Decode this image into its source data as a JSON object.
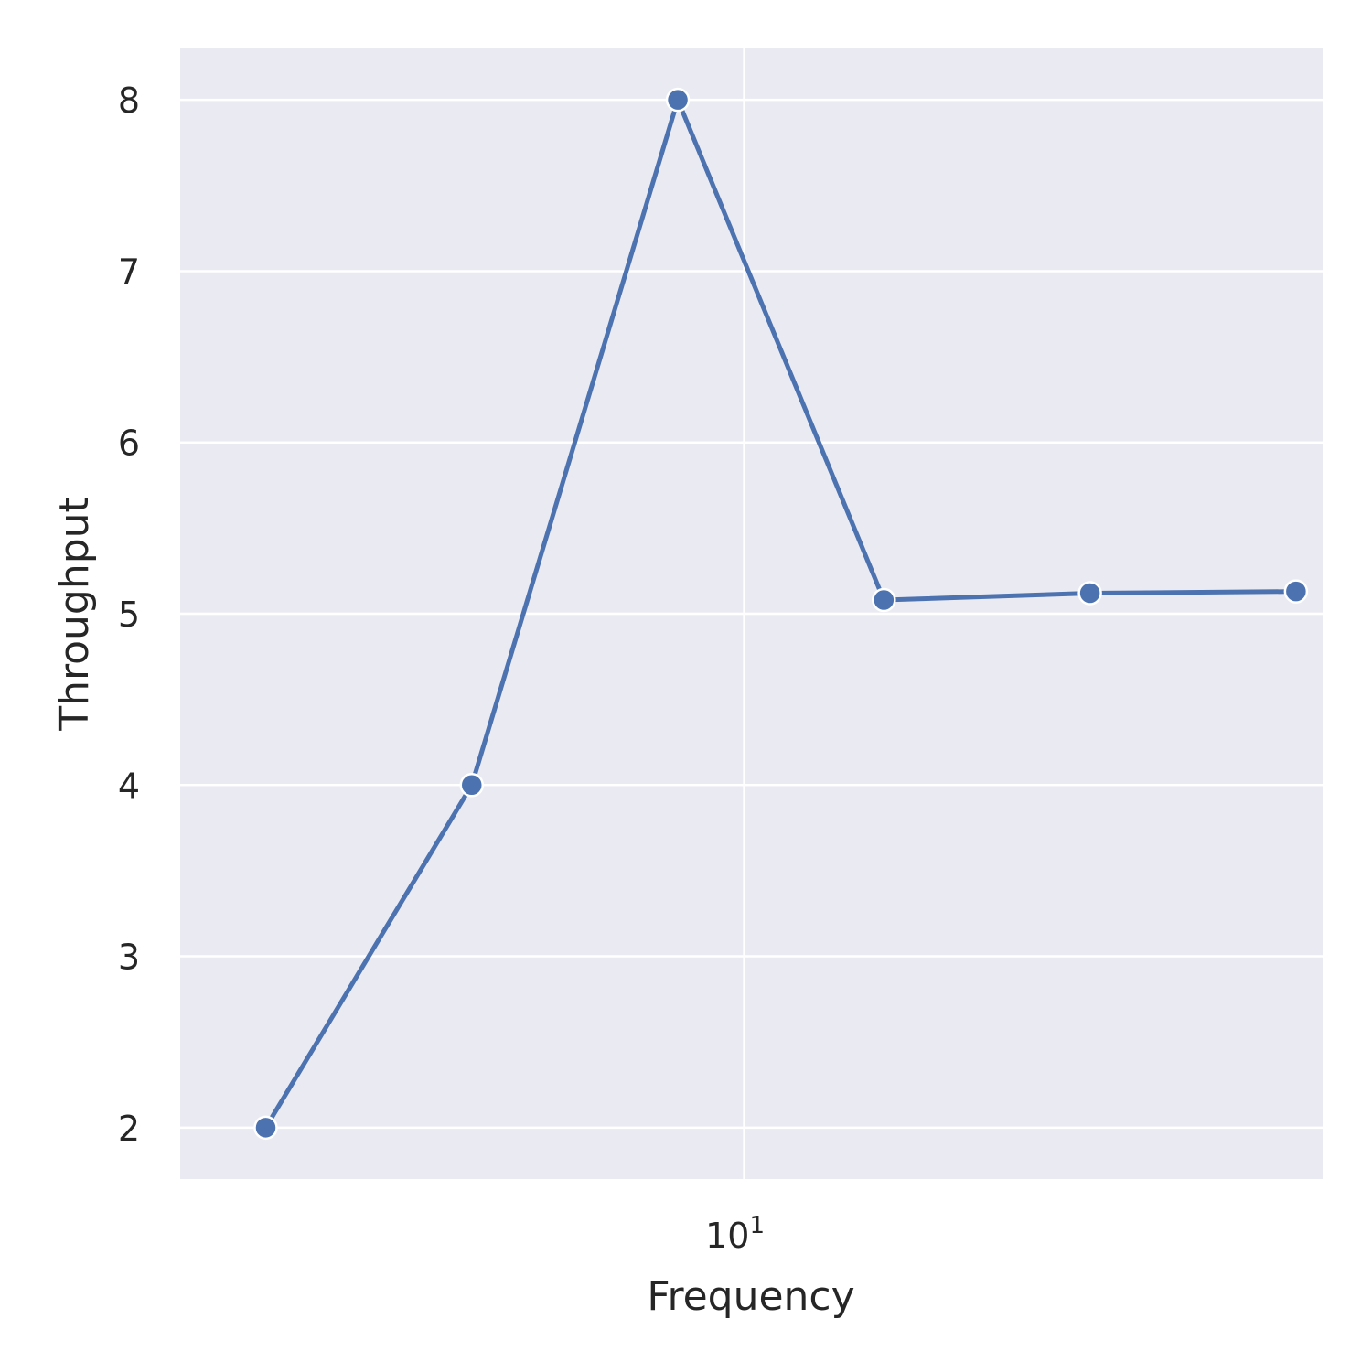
{
  "chart_data": {
    "type": "line",
    "title": "",
    "xlabel": "Frequency",
    "ylabel": "Throughput",
    "xscale": "log",
    "x": [
      2,
      4,
      8,
      16,
      32,
      64
    ],
    "series": [
      {
        "name": "Throughput",
        "values": [
          2.0,
          4.0,
          8.0,
          5.08,
          5.12,
          5.13
        ]
      }
    ],
    "xlim": [
      1.5,
      70
    ],
    "ylim": [
      1.7,
      8.3
    ],
    "yticks": [
      2,
      3,
      4,
      5,
      6,
      7,
      8
    ],
    "xticks": [
      {
        "value": 10,
        "base": "10",
        "exponent": "1"
      }
    ],
    "grid": true,
    "legend": "none",
    "colors": {
      "line": "#4c72b0",
      "plot_bg": "#eaeaf2",
      "grid": "#ffffff",
      "text": "#262626"
    }
  }
}
